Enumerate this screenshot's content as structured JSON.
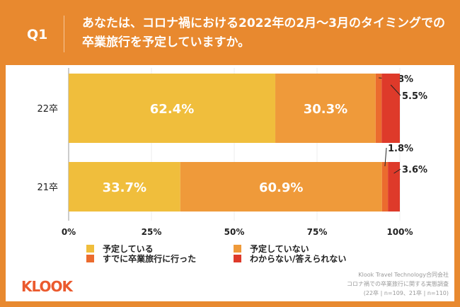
{
  "header": {
    "q": "Q1",
    "title": "あなたは、コロナ禍における2022年の2月〜3月のタイミングでの卒業旅行を予定していますか。"
  },
  "chart_data": {
    "type": "bar",
    "orientation": "horizontal",
    "stacked": true,
    "categories": [
      "22卒",
      "21卒"
    ],
    "series": [
      {
        "name": "予定している",
        "color": "#F0BE3C",
        "values": [
          62.4,
          33.7
        ]
      },
      {
        "name": "予定していない",
        "color": "#EF9A3A",
        "values": [
          30.3,
          60.9
        ]
      },
      {
        "name": "すでに卒業旅行に行った",
        "color": "#EB6B2E",
        "values": [
          1.8,
          1.8
        ]
      },
      {
        "name": "わからない/答えられない",
        "color": "#DE3A2A",
        "values": [
          5.5,
          3.6
        ]
      }
    ],
    "xlim": [
      0,
      100
    ],
    "xticks": [
      "0%",
      "25%",
      "50%",
      "75%",
      "100%"
    ],
    "grid": true,
    "legend": "bottom"
  },
  "footer": {
    "logo": "KLOOK",
    "source": [
      "Klook Travel Technology合同会社",
      "コロナ禍での卒業旅行に関する実態調査",
      "(22卒 | n=109、21卒 | n=110)"
    ]
  }
}
